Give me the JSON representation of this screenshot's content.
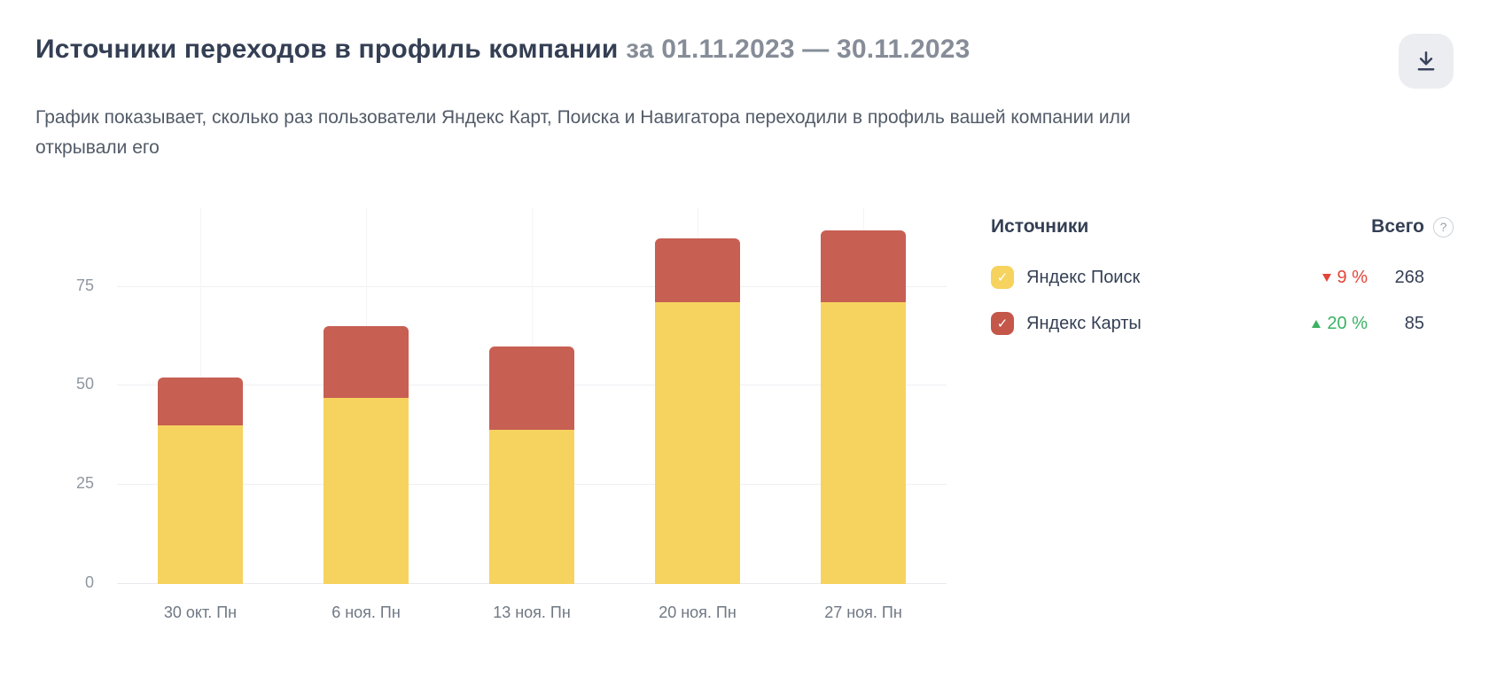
{
  "header": {
    "title": "Источники переходов в профиль компании",
    "period": " за 01.11.2023 — 30.11.2023",
    "subtitle": "График показывает, сколько раз пользователи Яндекс Карт, Поиска и Навигатора переходили в профиль вашей компании или открывали его"
  },
  "icons": {
    "check": "✓",
    "help": "?"
  },
  "legend": {
    "sources_header": "Источники",
    "total_header": "Всего",
    "items": [
      {
        "label": "Яндекс Поиск",
        "color": "#f6d35f",
        "change": "9 %",
        "change_dir": "down",
        "trend_color": "#e2453a",
        "total": "268"
      },
      {
        "label": "Яндекс Карты",
        "color": "#c4574a",
        "change": "20 %",
        "change_dir": "up",
        "trend_color": "#3cb163",
        "total": "85"
      }
    ]
  },
  "chart_data": {
    "type": "bar",
    "stacked": true,
    "title": "Источники переходов в профиль компании за 01.11.2023 — 30.11.2023",
    "categories": [
      "30 окт. Пн",
      "6 ноя. Пн",
      "13 ноя. Пн",
      "20 ноя. Пн",
      "27 ноя. Пн"
    ],
    "series": [
      {
        "name": "Яндекс Поиск",
        "color": "#f6d35f",
        "values": [
          40,
          47,
          39,
          71,
          71
        ],
        "total": 268
      },
      {
        "name": "Яндекс Карты",
        "color": "#c75f53",
        "values": [
          12,
          18,
          21,
          16,
          18
        ],
        "total": 85
      }
    ],
    "yticks": [
      0,
      25,
      50,
      75
    ],
    "ylim": [
      0,
      95
    ],
    "xlabel": "",
    "ylabel": "",
    "grid": true,
    "legend_position": "right"
  }
}
